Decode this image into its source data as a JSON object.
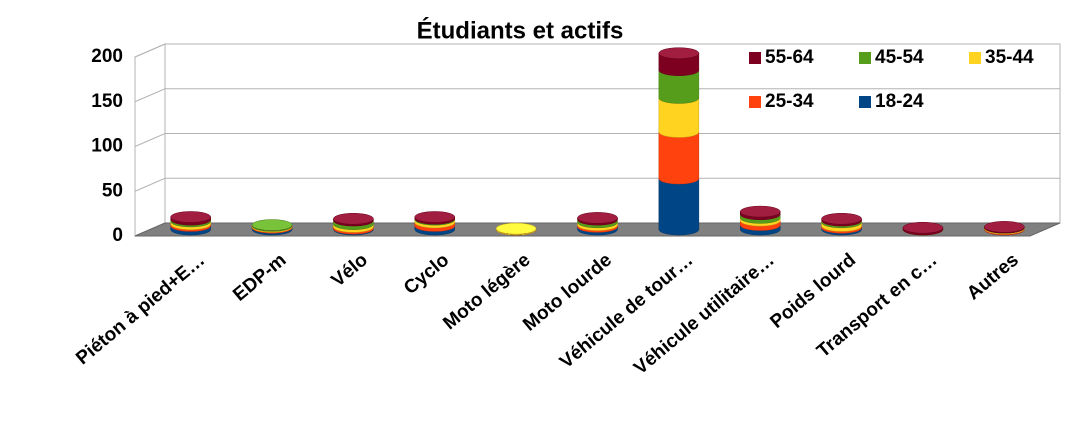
{
  "chart_data": {
    "type": "bar",
    "stacked": true,
    "title": "Étudiants et actifs",
    "categories": [
      "Piéton à pied+E…",
      "EDP-m",
      "Vélo",
      "Cyclo",
      "Moto légère",
      "Moto lourde",
      "Véhicule de tour…",
      "Véhicule utilitaire…",
      "Poids lourd",
      "Transport en c…",
      "Autres"
    ],
    "series": [
      {
        "name": "18-24",
        "color": "#004586",
        "values": [
          4,
          2,
          1,
          4,
          0,
          3,
          57,
          5,
          2,
          0,
          0
        ]
      },
      {
        "name": "25-34",
        "color": "#ff420e",
        "values": [
          2,
          1,
          2,
          4,
          0,
          2,
          52,
          5,
          2,
          0,
          1
        ]
      },
      {
        "name": "35-44",
        "color": "#ffd320",
        "values": [
          3,
          1,
          3,
          3,
          1,
          3,
          38,
          3,
          4,
          0,
          1
        ]
      },
      {
        "name": "45-54",
        "color": "#579d1c",
        "values": [
          2,
          1,
          4,
          1,
          0,
          3,
          31,
          4,
          2,
          0,
          0
        ]
      },
      {
        "name": "55-64",
        "color": "#7e0021",
        "values": [
          3,
          0,
          2,
          2,
          0,
          2,
          19,
          3,
          2,
          2,
          1
        ]
      }
    ],
    "ylim": [
      0,
      200
    ],
    "yticks": [
      0,
      50,
      100,
      150,
      200
    ],
    "grid": true,
    "legend": "top-right"
  }
}
